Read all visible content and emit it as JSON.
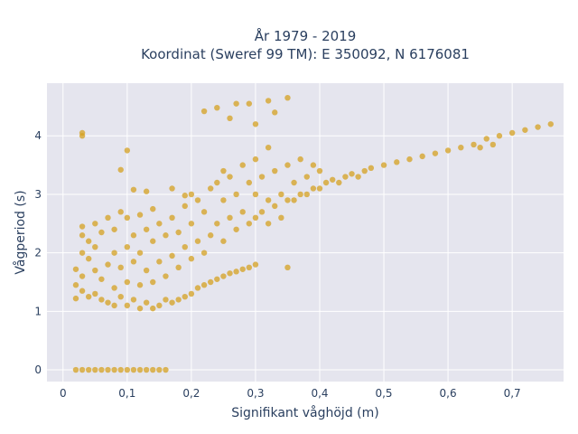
{
  "chart_data": {
    "type": "scatter",
    "title_line1": "År 1979 - 2019",
    "title_line2": "Koordinat (Sweref 99 TM): E 350092, N 6176081",
    "xlabel": "Signifikant våghöjd (m)",
    "ylabel": "Vågperiod (s)",
    "xlim": [
      -0.025,
      0.78
    ],
    "ylim": [
      -0.2,
      4.9
    ],
    "x_ticks": [
      0,
      0.1,
      0.2,
      0.3,
      0.4,
      0.5,
      0.6,
      0.7
    ],
    "x_tick_labels": [
      "0",
      "0,1",
      "0,2",
      "0,3",
      "0,4",
      "0,5",
      "0,6",
      "0,7"
    ],
    "y_ticks": [
      0,
      1,
      2,
      3,
      4
    ],
    "y_tick_labels": [
      "0",
      "1",
      "2",
      "3",
      "4"
    ],
    "grid": true,
    "marker_color": "#d4a020",
    "plot_background": "#e5e5ee",
    "series": [
      {
        "points": [
          [
            0.02,
            0
          ],
          [
            0.03,
            0
          ],
          [
            0.04,
            0
          ],
          [
            0.05,
            0
          ],
          [
            0.06,
            0
          ],
          [
            0.07,
            0
          ],
          [
            0.08,
            0
          ],
          [
            0.09,
            0
          ],
          [
            0.1,
            0
          ],
          [
            0.11,
            0
          ],
          [
            0.12,
            0
          ],
          [
            0.13,
            0
          ],
          [
            0.14,
            0
          ],
          [
            0.15,
            0
          ],
          [
            0.16,
            0
          ],
          [
            0.03,
            4.05
          ],
          [
            0.03,
            4.0
          ],
          [
            0.1,
            3.75
          ],
          [
            0.09,
            3.42
          ],
          [
            0.11,
            3.08
          ],
          [
            0.13,
            3.05
          ],
          [
            0.17,
            3.1
          ],
          [
            0.19,
            2.98
          ],
          [
            0.02,
            1.22
          ],
          [
            0.02,
            1.45
          ],
          [
            0.02,
            1.72
          ],
          [
            0.03,
            1.35
          ],
          [
            0.03,
            1.6
          ],
          [
            0.03,
            2.0
          ],
          [
            0.03,
            2.3
          ],
          [
            0.03,
            2.45
          ],
          [
            0.04,
            1.25
          ],
          [
            0.04,
            1.9
          ],
          [
            0.04,
            2.2
          ],
          [
            0.05,
            1.3
          ],
          [
            0.05,
            1.7
          ],
          [
            0.05,
            2.1
          ],
          [
            0.05,
            2.5
          ],
          [
            0.06,
            1.2
          ],
          [
            0.06,
            1.55
          ],
          [
            0.06,
            2.35
          ],
          [
            0.07,
            1.15
          ],
          [
            0.07,
            1.8
          ],
          [
            0.07,
            2.6
          ],
          [
            0.08,
            1.1
          ],
          [
            0.08,
            1.4
          ],
          [
            0.08,
            2.0
          ],
          [
            0.08,
            2.4
          ],
          [
            0.09,
            1.25
          ],
          [
            0.09,
            1.75
          ],
          [
            0.09,
            2.7
          ],
          [
            0.1,
            1.1
          ],
          [
            0.1,
            1.5
          ],
          [
            0.1,
            2.1
          ],
          [
            0.1,
            2.6
          ],
          [
            0.11,
            1.2
          ],
          [
            0.11,
            1.85
          ],
          [
            0.11,
            2.3
          ],
          [
            0.12,
            1.05
          ],
          [
            0.12,
            1.45
          ],
          [
            0.12,
            2.0
          ],
          [
            0.12,
            2.65
          ],
          [
            0.13,
            1.15
          ],
          [
            0.13,
            1.7
          ],
          [
            0.13,
            2.4
          ],
          [
            0.14,
            1.05
          ],
          [
            0.14,
            1.5
          ],
          [
            0.14,
            2.2
          ],
          [
            0.14,
            2.75
          ],
          [
            0.15,
            1.1
          ],
          [
            0.15,
            1.85
          ],
          [
            0.15,
            2.5
          ],
          [
            0.16,
            1.2
          ],
          [
            0.16,
            1.6
          ],
          [
            0.16,
            2.3
          ],
          [
            0.17,
            1.15
          ],
          [
            0.17,
            1.95
          ],
          [
            0.17,
            2.6
          ],
          [
            0.18,
            1.2
          ],
          [
            0.18,
            1.75
          ],
          [
            0.18,
            2.35
          ],
          [
            0.19,
            1.25
          ],
          [
            0.19,
            2.1
          ],
          [
            0.19,
            2.8
          ],
          [
            0.2,
            1.3
          ],
          [
            0.2,
            1.9
          ],
          [
            0.2,
            2.5
          ],
          [
            0.2,
            3.0
          ],
          [
            0.21,
            1.4
          ],
          [
            0.21,
            2.2
          ],
          [
            0.21,
            2.9
          ],
          [
            0.22,
            1.45
          ],
          [
            0.22,
            2.0
          ],
          [
            0.22,
            2.7
          ],
          [
            0.23,
            1.5
          ],
          [
            0.23,
            2.3
          ],
          [
            0.23,
            3.1
          ],
          [
            0.24,
            1.55
          ],
          [
            0.24,
            2.5
          ],
          [
            0.24,
            3.2
          ],
          [
            0.25,
            1.6
          ],
          [
            0.25,
            2.2
          ],
          [
            0.25,
            2.9
          ],
          [
            0.25,
            3.4
          ],
          [
            0.26,
            1.65
          ],
          [
            0.26,
            2.6
          ],
          [
            0.26,
            3.3
          ],
          [
            0.27,
            1.68
          ],
          [
            0.27,
            2.4
          ],
          [
            0.27,
            3.0
          ],
          [
            0.28,
            1.72
          ],
          [
            0.28,
            2.7
          ],
          [
            0.28,
            3.5
          ],
          [
            0.29,
            1.75
          ],
          [
            0.29,
            2.5
          ],
          [
            0.29,
            3.2
          ],
          [
            0.3,
            1.8
          ],
          [
            0.3,
            2.6
          ],
          [
            0.3,
            3.0
          ],
          [
            0.3,
            3.6
          ],
          [
            0.31,
            2.7
          ],
          [
            0.31,
            3.3
          ],
          [
            0.32,
            2.5
          ],
          [
            0.32,
            2.9
          ],
          [
            0.32,
            3.8
          ],
          [
            0.33,
            2.8
          ],
          [
            0.33,
            3.4
          ],
          [
            0.34,
            2.6
          ],
          [
            0.34,
            3.0
          ],
          [
            0.35,
            1.75
          ],
          [
            0.35,
            2.9
          ],
          [
            0.35,
            3.5
          ],
          [
            0.36,
            2.9
          ],
          [
            0.36,
            3.2
          ],
          [
            0.37,
            3.0
          ],
          [
            0.37,
            3.6
          ],
          [
            0.38,
            3.0
          ],
          [
            0.38,
            3.3
          ],
          [
            0.39,
            3.1
          ],
          [
            0.39,
            3.5
          ],
          [
            0.4,
            3.1
          ],
          [
            0.4,
            3.4
          ],
          [
            0.41,
            3.2
          ],
          [
            0.42,
            3.25
          ],
          [
            0.43,
            3.2
          ],
          [
            0.44,
            3.3
          ],
          [
            0.45,
            3.35
          ],
          [
            0.46,
            3.3
          ],
          [
            0.47,
            3.4
          ],
          [
            0.48,
            3.45
          ],
          [
            0.5,
            3.5
          ],
          [
            0.52,
            3.55
          ],
          [
            0.54,
            3.6
          ],
          [
            0.56,
            3.65
          ],
          [
            0.58,
            3.7
          ],
          [
            0.6,
            3.75
          ],
          [
            0.62,
            3.8
          ],
          [
            0.64,
            3.85
          ],
          [
            0.66,
            3.95
          ],
          [
            0.68,
            4.0
          ],
          [
            0.7,
            4.05
          ],
          [
            0.72,
            4.1
          ],
          [
            0.74,
            4.15
          ],
          [
            0.76,
            4.2
          ],
          [
            0.65,
            3.8
          ],
          [
            0.67,
            3.85
          ],
          [
            0.22,
            4.42
          ],
          [
            0.24,
            4.48
          ],
          [
            0.27,
            4.55
          ],
          [
            0.29,
            4.55
          ],
          [
            0.32,
            4.6
          ],
          [
            0.35,
            4.65
          ],
          [
            0.26,
            4.3
          ],
          [
            0.3,
            4.2
          ],
          [
            0.33,
            4.4
          ]
        ]
      }
    ]
  }
}
